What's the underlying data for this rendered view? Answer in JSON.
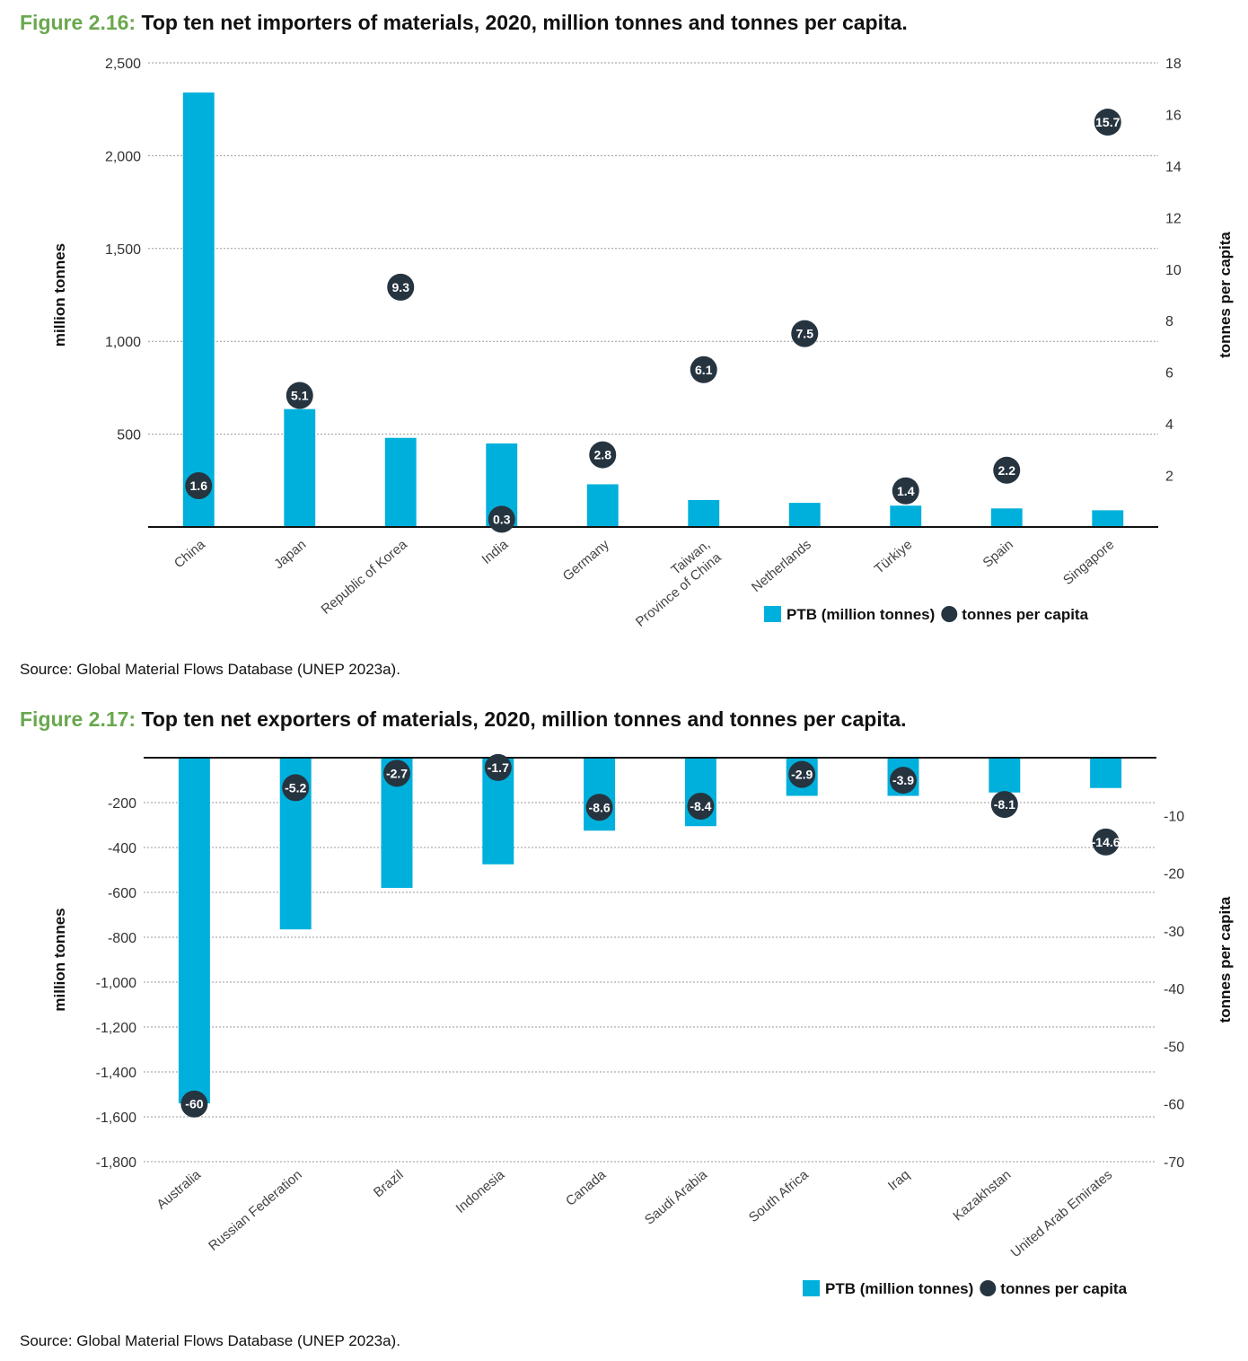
{
  "figures": [
    {
      "number": "Figure 2.16:",
      "title": "Top ten net importers of materials, 2020, million tonnes and tonnes per capita.",
      "source": "Source: Global Material Flows Database (UNEP 2023a).",
      "colors": {
        "bar": "#00b0dc",
        "dot": "#263440",
        "number": "#6aa84f"
      },
      "chart_data": {
        "type": "bar",
        "categories": [
          "China",
          "Japan",
          "Republic of Korea",
          "India",
          "Germany",
          "Taiwan, Province of China",
          "Netherlands",
          "Türkiye",
          "Spain",
          "Singapore"
        ],
        "series": [
          {
            "name": "PTB (million tonnes)",
            "axis": "left",
            "values": [
              2340,
              635,
              480,
              450,
              230,
              145,
              130,
              115,
              100,
              90
            ]
          },
          {
            "name": "tonnes per capita",
            "axis": "right",
            "values": [
              1.6,
              5.1,
              9.3,
              0.3,
              2.8,
              6.1,
              7.5,
              1.4,
              2.2,
              15.7
            ],
            "labels": [
              "1.6",
              "5.1",
              "9.3",
              "0.3",
              "2.8",
              "6.1",
              "7.5",
              "1.4",
              "2.2",
              "15.7"
            ]
          }
        ],
        "ylabel": "million tonnes",
        "y2label": "tonnes per capita",
        "ylim": [
          0,
          2500
        ],
        "y2lim": [
          0,
          18
        ],
        "yticks": [
          500,
          1000,
          1500,
          2000,
          2500
        ],
        "ytick_labels": [
          "500",
          "1,000",
          "1,500",
          "2,000",
          "2,500"
        ],
        "y2ticks": [
          2,
          4,
          6,
          8,
          10,
          12,
          14,
          16,
          18
        ],
        "y2tick_labels": [
          "2",
          "4",
          "6",
          "8",
          "10",
          "12",
          "14",
          "16",
          "18"
        ],
        "category_labels": [
          [
            "China"
          ],
          [
            "Japan"
          ],
          [
            "Republic of Korea"
          ],
          [
            "India"
          ],
          [
            "Germany"
          ],
          [
            "Taiwan,",
            "Province of China"
          ],
          [
            "Netherlands"
          ],
          [
            "Türkiye"
          ],
          [
            "Spain"
          ],
          [
            "Singapore"
          ]
        ],
        "grid": true,
        "legend_position": "bottom-right",
        "legend": {
          "bar": "PTB (million tonnes)",
          "dot": "tonnes per capita"
        }
      }
    },
    {
      "number": "Figure 2.17:",
      "title": "Top ten net exporters of materials, 2020, million tonnes and tonnes per capita.",
      "source": "Source: Global Material Flows Database (UNEP 2023a).",
      "colors": {
        "bar": "#00b0dc",
        "dot": "#263440",
        "number": "#6aa84f"
      },
      "chart_data": {
        "type": "bar",
        "categories": [
          "Australia",
          "Russian Federation",
          "Brazil",
          "Indonesia",
          "Canada",
          "Saudi Arabia",
          "South Africa",
          "Iraq",
          "Kazakhstan",
          "United Arab Emirates"
        ],
        "series": [
          {
            "name": "PTB (million tonnes)",
            "axis": "left",
            "values": [
              -1540,
              -765,
              -580,
              -475,
              -325,
              -305,
              -170,
              -170,
              -155,
              -135
            ]
          },
          {
            "name": "tonnes per capita",
            "axis": "right",
            "values": [
              -60,
              -5.2,
              -2.7,
              -1.7,
              -8.6,
              -8.4,
              -2.9,
              -3.9,
              -8.1,
              -14.6
            ],
            "labels": [
              "-60",
              "-5.2",
              "-2.7",
              "-1.7",
              "-8.6",
              "-8.4",
              "-2.9",
              "-3.9",
              "-8.1",
              "-14.6"
            ]
          }
        ],
        "ylabel": "million tonnes",
        "y2label": "tonnes per capita",
        "ylim": [
          -1800,
          0
        ],
        "y2lim": [
          -70,
          0
        ],
        "yticks": [
          -200,
          -400,
          -600,
          -800,
          -1000,
          -1200,
          -1400,
          -1600,
          -1800
        ],
        "ytick_labels": [
          "-200",
          "-400",
          "-600",
          "-800",
          "-1,000",
          "-1,200",
          "-1,400",
          "-1,600",
          "-1,800"
        ],
        "y2ticks": [
          -10,
          -20,
          -30,
          -40,
          -50,
          -60,
          -70
        ],
        "y2tick_labels": [
          "-10",
          "-20",
          "-30",
          "-40",
          "-50",
          "-60",
          "-70"
        ],
        "category_labels": [
          [
            "Australia"
          ],
          [
            "Russian Federation"
          ],
          [
            "Brazil"
          ],
          [
            "Indonesia"
          ],
          [
            "Canada"
          ],
          [
            "Saudi Arabia"
          ],
          [
            "South Africa"
          ],
          [
            "Iraq"
          ],
          [
            "Kazakhstan"
          ],
          [
            "United Arab Emirates"
          ]
        ],
        "grid": true,
        "legend_position": "bottom-right",
        "legend": {
          "bar": "PTB (million tonnes)",
          "dot": "tonnes per capita"
        }
      }
    }
  ]
}
